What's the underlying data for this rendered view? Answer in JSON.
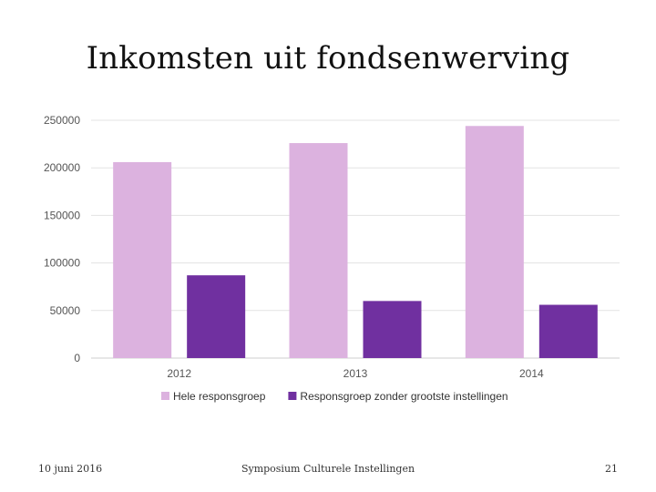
{
  "slide": {
    "title": "Inkomsten uit fondsenwerving",
    "footer_date": "10 juni 2016",
    "footer_center": "Symposium Culturele Instellingen",
    "footer_page": "21"
  },
  "chart_data": {
    "type": "bar",
    "title": "",
    "xlabel": "",
    "ylabel": "",
    "categories": [
      "2012",
      "2013",
      "2014"
    ],
    "series": [
      {
        "name": "Hele responsgroep",
        "values": [
          206000,
          226000,
          244000
        ],
        "color": "#dcb2df"
      },
      {
        "name": "Responsgroep zonder grootste instellingen",
        "values": [
          87000,
          60000,
          56000
        ],
        "color": "#7030a0"
      }
    ],
    "ylim": [
      0,
      250000
    ],
    "yticks": [
      0,
      50000,
      100000,
      150000,
      200000,
      250000
    ],
    "grid": true,
    "legend_position": "bottom"
  }
}
